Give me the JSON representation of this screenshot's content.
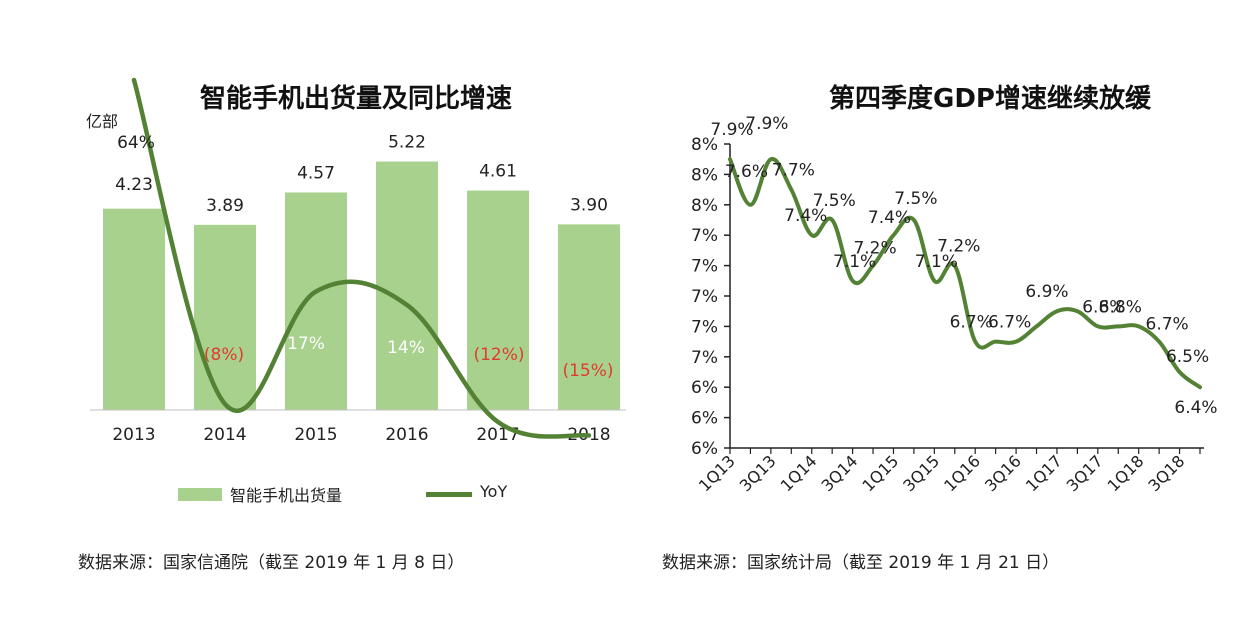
{
  "colors": {
    "bar": "#a9d18e",
    "line": "#548235",
    "negative_label": "#e03c2c",
    "axis": "#222222",
    "inside_label": "#ffffff"
  },
  "left": {
    "source": "数据来源：国家信通院（截至 2019 年 1 月 8 日）"
  },
  "right": {
    "source": "数据来源：国家统计局（截至 2019 年 1 月 21 日）"
  },
  "chart_data": [
    {
      "type": "bar",
      "title": "智能手机出货量及同比增速",
      "ylabel": "亿部",
      "categories": [
        "2013",
        "2014",
        "2015",
        "2016",
        "2017",
        "2018"
      ],
      "series": [
        {
          "name": "智能手机出货量",
          "type": "bar",
          "values": [
            4.23,
            3.89,
            4.57,
            5.22,
            4.61,
            3.9
          ],
          "labels": [
            "4.23",
            "3.89",
            "4.57",
            "5.22",
            "4.61",
            "3.90"
          ]
        },
        {
          "name": "YoY",
          "type": "line",
          "values": [
            64,
            -8,
            17,
            14,
            -12,
            -15
          ],
          "labels": [
            "64%",
            "(8%)",
            "17%",
            "14%",
            "(12%)",
            "(15%)"
          ]
        }
      ],
      "legend": "bottom"
    },
    {
      "type": "line",
      "title": "第四季度GDP增速继续放缓",
      "x": [
        "1Q13",
        "2Q13",
        "3Q13",
        "4Q13",
        "1Q14",
        "2Q14",
        "3Q14",
        "4Q14",
        "1Q15",
        "2Q15",
        "3Q15",
        "4Q15",
        "1Q16",
        "2Q16",
        "3Q16",
        "4Q16",
        "1Q17",
        "2Q17",
        "3Q17",
        "4Q17",
        "1Q18",
        "2Q18",
        "3Q18",
        "4Q18"
      ],
      "xticks": [
        "1Q13",
        "3Q13",
        "1Q14",
        "3Q14",
        "1Q15",
        "3Q15",
        "1Q16",
        "3Q16",
        "1Q17",
        "3Q17",
        "1Q18",
        "3Q18"
      ],
      "series": [
        {
          "values": [
            7.9,
            7.6,
            7.9,
            7.7,
            7.4,
            7.5,
            7.1,
            7.2,
            7.4,
            7.5,
            7.1,
            7.2,
            6.7,
            6.7,
            6.7,
            6.8,
            6.9,
            6.9,
            6.8,
            6.8,
            6.8,
            6.7,
            6.5,
            6.4
          ],
          "labels": [
            "7.9%",
            "7.6%",
            "7.9%",
            "7.7%",
            "7.4%",
            "7.5%",
            "7.1%",
            "7.2%",
            "7.4%",
            "7.5%",
            "7.1%",
            "7.2%",
            "6.7%",
            "6.7%",
            "",
            "",
            "6.9%",
            "",
            "6.8%",
            "6.8%",
            "",
            "6.7%",
            "6.5%",
            "6.4%"
          ]
        }
      ],
      "yticks": [
        "8%",
        "8%",
        "8%",
        "7%",
        "7%",
        "7%",
        "7%",
        "7%",
        "6%",
        "6%",
        "6%"
      ],
      "ylim": [
        6.0,
        8.0
      ]
    }
  ]
}
